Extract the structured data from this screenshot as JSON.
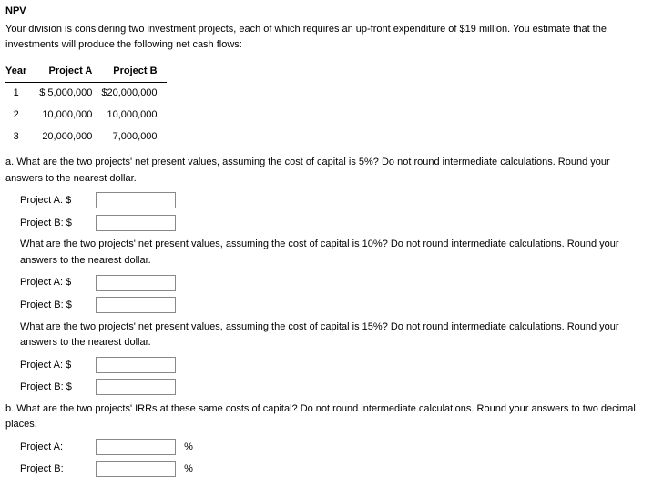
{
  "title": "NPV",
  "intro": "Your division is considering two investment projects, each of which requires an up-front expenditure of $19 million. You estimate that the investments will produce the following net cash flows:",
  "table": {
    "headers": {
      "year": "Year",
      "a": "Project A",
      "b": "Project B"
    },
    "rows": [
      {
        "year": "1",
        "a": "$ 5,000,000",
        "b": "$20,000,000"
      },
      {
        "year": "2",
        "a": "10,000,000",
        "b": "10,000,000"
      },
      {
        "year": "3",
        "a": "20,000,000",
        "b": "7,000,000"
      }
    ]
  },
  "qa": {
    "prompt1": "a. What are the two projects' net present values, assuming the cost of capital is 5%? Do not round intermediate calculations. Round your answers to the nearest dollar.",
    "prompt2": "What are the two projects' net present values, assuming the cost of capital is 10%? Do not round intermediate calculations. Round your answers to the nearest dollar.",
    "prompt3": "What are the two projects' net present values, assuming the cost of capital is 15%? Do not round intermediate calculations. Round your answers to the nearest dollar.",
    "labelA": "Project A: $",
    "labelB": "Project B: $"
  },
  "qb": {
    "prompt": "b. What are the two projects' IRRs at these same costs of capital? Do not round intermediate calculations. Round your answers to two decimal places.",
    "labelA": "Project A:",
    "labelB": "Project B:",
    "unit": "%"
  }
}
